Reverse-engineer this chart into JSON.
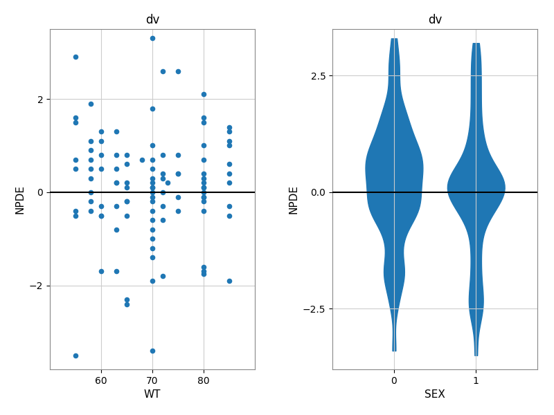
{
  "title": "dv",
  "scatter_xlabel": "WT",
  "scatter_ylabel": "NPDE",
  "violin_xlabel": "SEX",
  "violin_ylabel": "NPDE",
  "violin_title": "dv",
  "scatter_color": "#1f77b4",
  "violin_color": "#1f77b4",
  "hline_color": "black",
  "background_color": "white",
  "grid_color": "#cccccc",
  "wt_all": [
    55,
    55,
    55,
    55,
    55,
    55,
    55,
    58,
    58,
    58,
    58,
    58,
    58,
    58,
    58,
    60,
    60,
    60,
    60,
    60,
    60,
    63,
    63,
    63,
    63,
    63,
    63,
    63,
    65,
    65,
    65,
    65,
    65,
    65,
    65,
    65,
    68,
    70,
    70,
    70,
    70,
    70,
    70,
    70,
    70,
    70,
    70,
    70,
    70,
    70,
    70,
    70,
    70,
    70,
    70,
    70,
    72,
    72,
    72,
    72,
    72,
    72,
    72,
    75,
    75,
    75,
    75,
    75,
    80,
    80,
    80,
    80,
    80,
    80,
    80,
    80,
    80,
    80,
    80,
    80,
    85,
    85,
    85,
    85,
    85,
    85,
    85,
    85,
    85,
    55,
    58,
    60,
    60,
    63,
    65,
    70,
    72,
    73,
    75,
    80,
    80,
    80,
    80,
    80,
    80,
    85
  ],
  "npde_all": [
    2.9,
    1.6,
    1.5,
    0.7,
    0.5,
    -0.4,
    -0.5,
    1.9,
    1.1,
    0.9,
    0.7,
    0.5,
    0.0,
    -0.2,
    -0.4,
    1.3,
    1.1,
    0.8,
    0.5,
    -0.5,
    -1.7,
    1.3,
    0.8,
    0.5,
    0.2,
    -0.3,
    -0.8,
    -1.7,
    0.8,
    0.6,
    0.2,
    0.1,
    -0.2,
    -0.5,
    -2.3,
    -2.4,
    0.7,
    3.3,
    1.8,
    1.0,
    0.7,
    0.5,
    0.3,
    0.2,
    0.1,
    0.0,
    -0.1,
    -0.2,
    -0.4,
    -0.6,
    -0.8,
    -1.0,
    -1.2,
    -1.4,
    -1.9,
    -3.4,
    2.6,
    0.8,
    0.4,
    0.0,
    -0.3,
    -0.6,
    -1.8,
    2.6,
    0.8,
    0.4,
    -0.1,
    -0.4,
    2.1,
    1.6,
    1.5,
    1.0,
    0.7,
    0.4,
    0.1,
    -0.1,
    -0.4,
    -1.6,
    -1.7,
    -1.75,
    1.4,
    1.3,
    1.1,
    1.0,
    0.6,
    0.4,
    0.2,
    -0.5,
    -1.9,
    -3.5,
    0.3,
    -0.5,
    -0.3,
    0.2,
    -0.2,
    0.1,
    0.3,
    0.2,
    0.4,
    0.1,
    -0.2,
    0.3,
    -0.1,
    0.2,
    0.0,
    -0.3
  ],
  "sex0_npde": [
    -3.4,
    -2.4,
    -2.3,
    -1.9,
    -1.8,
    -1.75,
    -1.7,
    -1.7,
    -1.4,
    -1.2,
    -1.0,
    -0.8,
    -0.8,
    -0.6,
    -0.5,
    -0.5,
    -0.4,
    -0.4,
    -0.4,
    -0.4,
    -0.3,
    -0.2,
    -0.2,
    -0.2,
    -0.1,
    0.0,
    0.0,
    0.1,
    0.1,
    0.2,
    0.2,
    0.3,
    0.4,
    0.4,
    0.4,
    0.5,
    0.5,
    0.5,
    0.6,
    0.7,
    0.7,
    0.8,
    0.8,
    0.8,
    0.8,
    0.9,
    1.0,
    1.0,
    1.1,
    1.1,
    1.3,
    1.3,
    1.4,
    1.5,
    1.6,
    1.6,
    1.8,
    1.9,
    2.1,
    2.6,
    2.6,
    2.9,
    3.3
  ],
  "sex1_npde": [
    -3.5,
    -2.7,
    -2.6,
    -2.5,
    -2.4,
    -2.3,
    -2.2,
    -2.0,
    -1.8,
    -1.6,
    -1.4,
    -1.2,
    -1.0,
    -0.8,
    -0.6,
    -0.5,
    -0.4,
    -0.3,
    -0.2,
    -0.1,
    0.0,
    0.0,
    0.1,
    0.1,
    0.2,
    0.2,
    0.3,
    0.3,
    0.4,
    0.4,
    0.5,
    0.6,
    0.7,
    0.8,
    0.9,
    1.0,
    1.1,
    1.2,
    1.4,
    1.6,
    1.8,
    2.0,
    2.2,
    2.4,
    2.6,
    2.8,
    3.0,
    3.2,
    -0.5,
    -0.3,
    0.2,
    -0.2,
    0.1,
    0.3,
    0.2,
    0.4,
    0.1,
    -0.2,
    0.3,
    -0.1,
    0.2,
    0.0,
    -0.3
  ],
  "scatter_ylim": [
    -3.8,
    3.5
  ],
  "scatter_xlim": [
    50,
    90
  ],
  "violin_ylim": [
    -3.8,
    3.5
  ],
  "scatter_xticks": [
    60,
    70,
    80
  ],
  "scatter_yticks": [
    -2,
    0,
    2
  ],
  "violin_yticks": [
    -2.5,
    0.0,
    2.5
  ],
  "violin_xticks": [
    0,
    1
  ],
  "violin_xlim": [
    -0.75,
    1.75
  ]
}
